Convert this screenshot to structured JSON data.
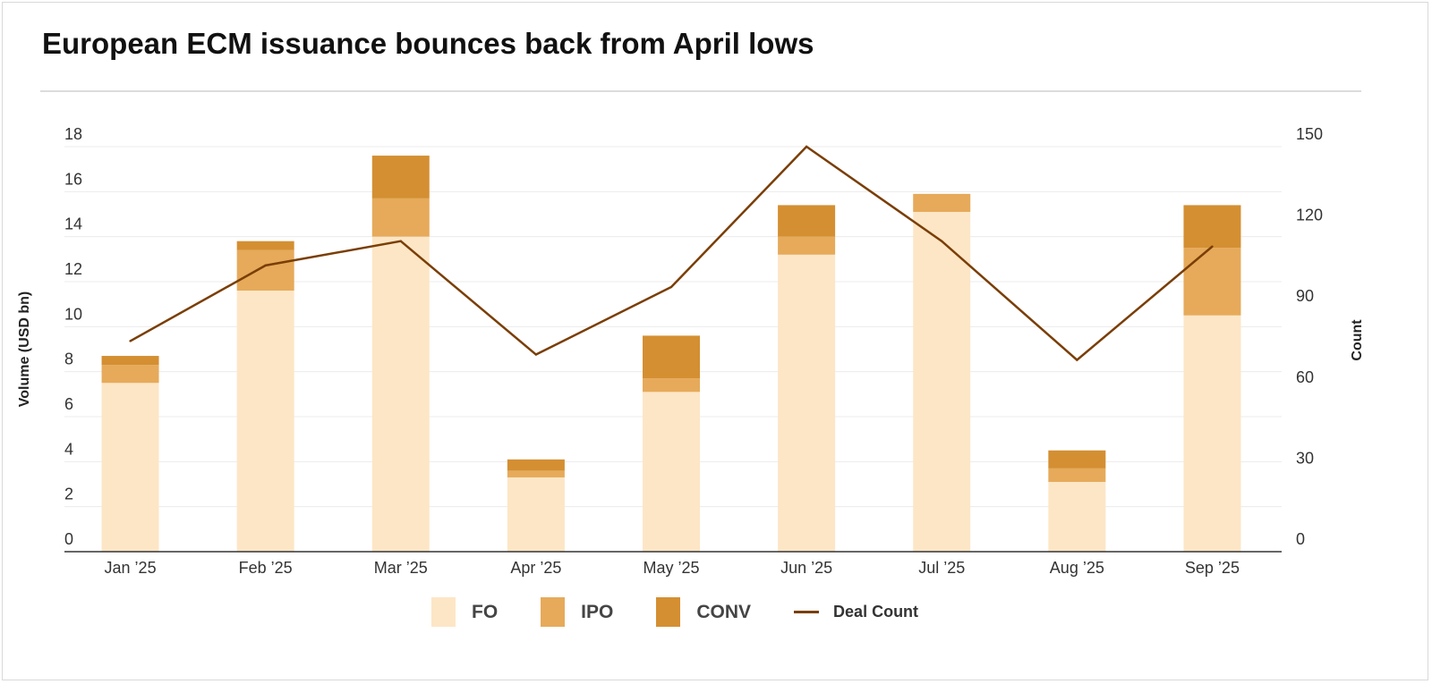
{
  "chart_data": {
    "type": "bar",
    "stacked": true,
    "title": "European ECM issuance bounces back from April lows",
    "categories": [
      "Jan ’25",
      "Feb ’25",
      "Mar ’25",
      "Apr ’25",
      "May ’25",
      "Jun ’25",
      "Jul ’25",
      "Aug ’25",
      "Sep ’25"
    ],
    "series": [
      {
        "name": "FO",
        "type": "bar",
        "color": "#FDE6C6",
        "values": [
          7.5,
          11.6,
          14.0,
          3.3,
          7.1,
          13.2,
          15.1,
          3.1,
          10.5
        ]
      },
      {
        "name": "IPO",
        "type": "bar",
        "color": "#E6AA5A",
        "values": [
          0.8,
          1.8,
          1.7,
          0.3,
          0.6,
          0.8,
          0.8,
          0.6,
          3.0
        ]
      },
      {
        "name": "CONV",
        "type": "bar",
        "color": "#D48F32",
        "values": [
          0.4,
          0.4,
          1.9,
          0.5,
          1.9,
          1.4,
          0,
          0.8,
          1.9
        ]
      },
      {
        "name": "Deal Count",
        "type": "line",
        "axis": "right",
        "color": "#7A3E05",
        "values": [
          78,
          106,
          115,
          73,
          98,
          150,
          115,
          71,
          113
        ]
      }
    ],
    "ylabel": "Volume (USD bn)",
    "ylabel_right": "Count",
    "ylim": [
      0,
      18
    ],
    "ylim_right": [
      0,
      150
    ],
    "yticks": [
      0,
      2,
      4,
      6,
      8,
      10,
      12,
      14,
      16,
      18
    ],
    "yticks_right": [
      0,
      30,
      60,
      90,
      120,
      150
    ],
    "grid": true,
    "legend": "bottom"
  }
}
